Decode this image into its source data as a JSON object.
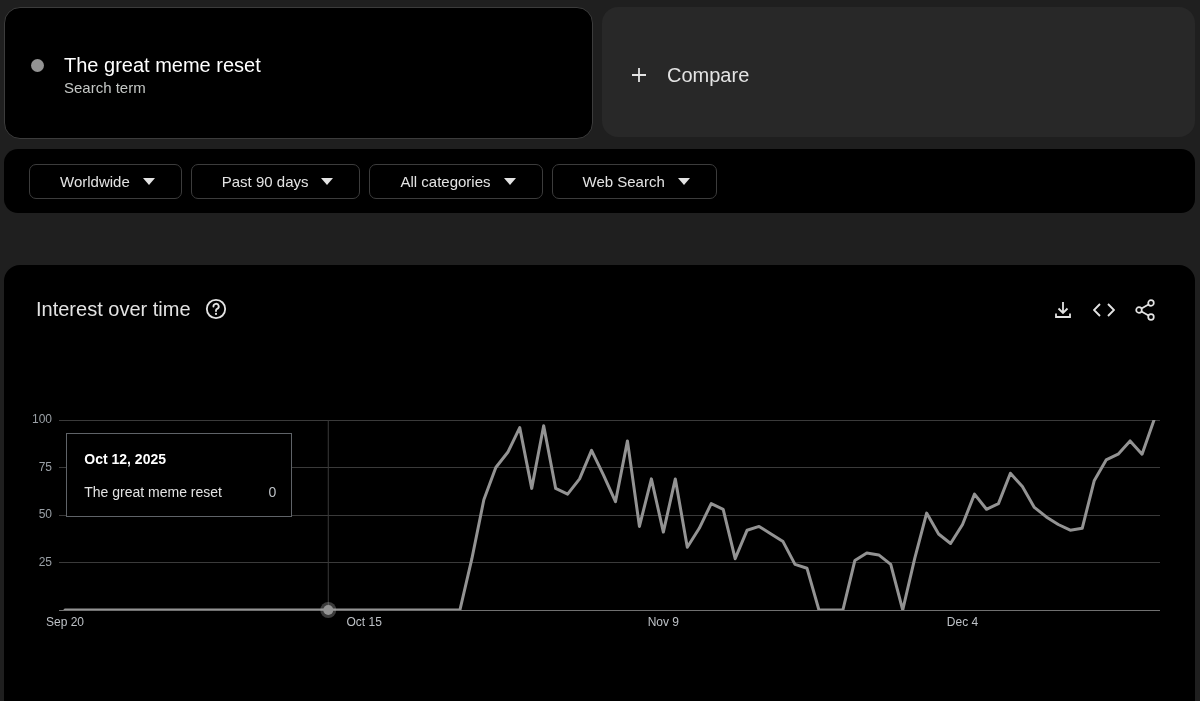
{
  "chart_data": {
    "type": "line",
    "title": "Interest over time",
    "x": [
      "2025-09-20",
      "2025-09-21",
      "2025-09-22",
      "2025-09-23",
      "2025-09-24",
      "2025-09-25",
      "2025-09-26",
      "2025-09-27",
      "2025-09-28",
      "2025-09-29",
      "2025-09-30",
      "2025-10-01",
      "2025-10-02",
      "2025-10-03",
      "2025-10-04",
      "2025-10-05",
      "2025-10-06",
      "2025-10-07",
      "2025-10-08",
      "2025-10-09",
      "2025-10-10",
      "2025-10-11",
      "2025-10-12",
      "2025-10-13",
      "2025-10-14",
      "2025-10-15",
      "2025-10-16",
      "2025-10-17",
      "2025-10-18",
      "2025-10-19",
      "2025-10-20",
      "2025-10-21",
      "2025-10-22",
      "2025-10-23",
      "2025-10-24",
      "2025-10-25",
      "2025-10-26",
      "2025-10-27",
      "2025-10-28",
      "2025-10-29",
      "2025-10-30",
      "2025-10-31",
      "2025-11-01",
      "2025-11-02",
      "2025-11-03",
      "2025-11-04",
      "2025-11-05",
      "2025-11-06",
      "2025-11-07",
      "2025-11-08",
      "2025-11-09",
      "2025-11-10",
      "2025-11-11",
      "2025-11-12",
      "2025-11-13",
      "2025-11-14",
      "2025-11-15",
      "2025-11-16",
      "2025-11-17",
      "2025-11-18",
      "2025-11-19",
      "2025-11-20",
      "2025-11-21",
      "2025-11-22",
      "2025-11-23",
      "2025-11-24",
      "2025-11-25",
      "2025-11-26",
      "2025-11-27",
      "2025-11-28",
      "2025-11-29",
      "2025-11-30",
      "2025-12-01",
      "2025-12-02",
      "2025-12-03",
      "2025-12-04",
      "2025-12-05",
      "2025-12-06",
      "2025-12-07",
      "2025-12-08",
      "2025-12-09",
      "2025-12-10",
      "2025-12-11",
      "2025-12-12",
      "2025-12-13",
      "2025-12-14",
      "2025-12-15",
      "2025-12-16",
      "2025-12-17",
      "2025-12-18",
      "2025-12-19",
      "2025-12-20"
    ],
    "series": [
      {
        "name": "The great meme reset",
        "color": "#939393",
        "values": [
          0,
          0,
          0,
          0,
          0,
          0,
          0,
          0,
          0,
          0,
          0,
          0,
          0,
          0,
          0,
          0,
          0,
          0,
          0,
          0,
          0,
          0,
          0,
          0,
          0,
          0,
          0,
          0,
          0,
          0,
          0,
          0,
          0,
          0,
          27,
          58,
          75,
          83,
          96,
          64,
          97,
          64,
          61,
          69,
          84,
          71,
          57,
          89,
          44,
          69,
          41,
          69,
          33,
          43,
          56,
          53,
          27,
          42,
          44,
          40,
          36,
          24,
          22,
          0,
          0,
          0,
          26,
          30,
          29,
          24,
          0,
          27,
          51,
          40,
          35,
          45,
          61,
          53,
          56,
          72,
          65,
          54,
          49,
          45,
          42,
          43,
          68,
          79,
          82,
          89,
          82,
          100
        ]
      }
    ],
    "xlim": [
      "2025-09-19T12:00",
      "2025-12-20T12:00"
    ],
    "xticks": [
      {
        "value": "2025-09-20",
        "label": "Sep 20"
      },
      {
        "value": "2025-10-15",
        "label": "Oct 15"
      },
      {
        "value": "2025-11-09",
        "label": "Nov 9"
      },
      {
        "value": "2025-12-04",
        "label": "Dec 4"
      }
    ],
    "ylim": [
      0,
      100
    ],
    "yticks": [
      {
        "value": 0,
        "label": null
      },
      25,
      50,
      75,
      100
    ],
    "grid": "y",
    "legend": "top left",
    "ref_lines": [
      {
        "axis": "x",
        "value": "2025-10-12",
        "color": "#3a3a3a"
      }
    ],
    "annotations": [
      "Search term",
      "Compare",
      "Worldwide",
      "Past 90 days",
      "All categories",
      "Web Search",
      "Oct 12, 2025",
      "0"
    ]
  }
}
